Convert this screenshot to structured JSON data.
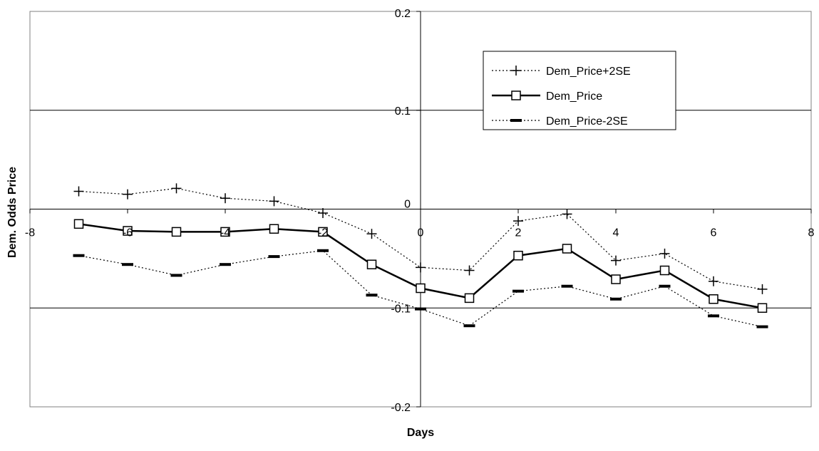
{
  "chart_data": {
    "type": "line",
    "xlabel": "Days",
    "ylabel": "Dem. Odds Price",
    "xlim": [
      -8,
      8
    ],
    "ylim": [
      -0.2,
      0.2
    ],
    "x_ticks": [
      -8,
      -6,
      -4,
      -2,
      0,
      2,
      4,
      6,
      8
    ],
    "x_tick_labels": [
      "-8",
      "-6",
      "-4",
      "-2",
      "0",
      "2",
      "4",
      "6",
      "8"
    ],
    "y_ticks": [
      0.2,
      0.1,
      0,
      -0.1,
      -0.2
    ],
    "y_tick_labels": [
      "0.2",
      "0.1",
      "0",
      "-0.1",
      "-0.2"
    ],
    "grid": "horizontal major gridlines",
    "legend_position": "top-right",
    "x": [
      -7,
      -6,
      -5,
      -4,
      -3,
      -2,
      -1,
      0,
      1,
      2,
      3,
      4,
      5,
      6,
      7
    ],
    "series": [
      {
        "name": "Dem_Price+2SE",
        "style": "dotted",
        "marker": "plus",
        "color": "#000000",
        "values": [
          0.018,
          0.015,
          0.021,
          0.011,
          0.008,
          -0.004,
          -0.025,
          -0.059,
          -0.062,
          -0.012,
          -0.005,
          -0.052,
          -0.045,
          -0.073,
          -0.081
        ]
      },
      {
        "name": "Dem_Price",
        "style": "solid",
        "marker": "square",
        "color": "#000000",
        "values": [
          -0.015,
          -0.022,
          -0.023,
          -0.023,
          -0.02,
          -0.023,
          -0.056,
          -0.08,
          -0.09,
          -0.047,
          -0.04,
          -0.071,
          -0.062,
          -0.091,
          -0.1
        ]
      },
      {
        "name": "Dem_Price-2SE",
        "style": "dotted",
        "marker": "dash",
        "color": "#000000",
        "values": [
          -0.047,
          -0.056,
          -0.067,
          -0.056,
          -0.048,
          -0.042,
          -0.087,
          -0.101,
          -0.118,
          -0.083,
          -0.078,
          -0.091,
          -0.078,
          -0.108,
          -0.119
        ]
      }
    ]
  }
}
